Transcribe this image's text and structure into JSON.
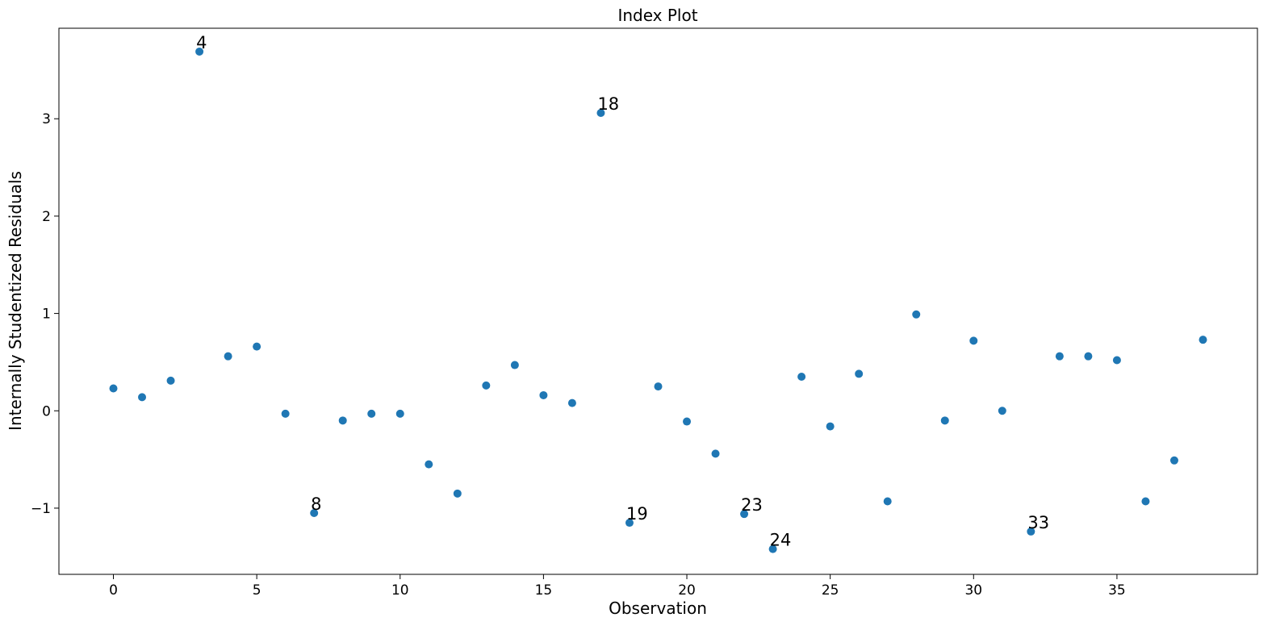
{
  "chart_data": {
    "type": "scatter",
    "title": "Index Plot",
    "xlabel": "Observation",
    "ylabel": "Internally Studentized Residuals",
    "xlim": [
      -1.9,
      39.9
    ],
    "ylim": [
      -1.68,
      3.93
    ],
    "xticks": [
      0,
      5,
      10,
      15,
      20,
      25,
      30,
      35
    ],
    "yticks": [
      -1,
      0,
      1,
      2,
      3
    ],
    "ytick_labels": [
      "−1",
      "0",
      "1",
      "2",
      "3"
    ],
    "grid": false,
    "marker_color": "#1f77b4",
    "series": [
      {
        "x": [
          0,
          1,
          2,
          3,
          4,
          5,
          6,
          7,
          8,
          9,
          10,
          11,
          12,
          13,
          14,
          15,
          16,
          17,
          18,
          19,
          20,
          21,
          22,
          23,
          24,
          25,
          26,
          27,
          28,
          29,
          30,
          31,
          32,
          33,
          34,
          35,
          36,
          37,
          38
        ],
        "y": [
          0.23,
          0.14,
          0.31,
          3.69,
          0.56,
          0.66,
          -0.03,
          -1.05,
          -0.1,
          -0.03,
          -0.03,
          -0.55,
          -0.85,
          0.26,
          0.47,
          0.16,
          0.08,
          3.06,
          -1.15,
          0.25,
          -0.11,
          -0.44,
          -1.06,
          -1.42,
          0.35,
          -0.16,
          0.38,
          -0.93,
          0.99,
          -0.1,
          0.72,
          0.0,
          -1.24,
          0.56,
          0.56,
          0.52,
          -0.93,
          -0.51,
          0.73
        ]
      }
    ],
    "annotations": [
      {
        "text": "4",
        "x": 3,
        "y": 3.69
      },
      {
        "text": "18",
        "x": 17,
        "y": 3.06
      },
      {
        "text": "8",
        "x": 7,
        "y": -1.05
      },
      {
        "text": "19",
        "x": 18,
        "y": -1.15
      },
      {
        "text": "23",
        "x": 22,
        "y": -1.06
      },
      {
        "text": "24",
        "x": 23,
        "y": -1.42
      },
      {
        "text": "33",
        "x": 32,
        "y": -1.24
      }
    ]
  }
}
